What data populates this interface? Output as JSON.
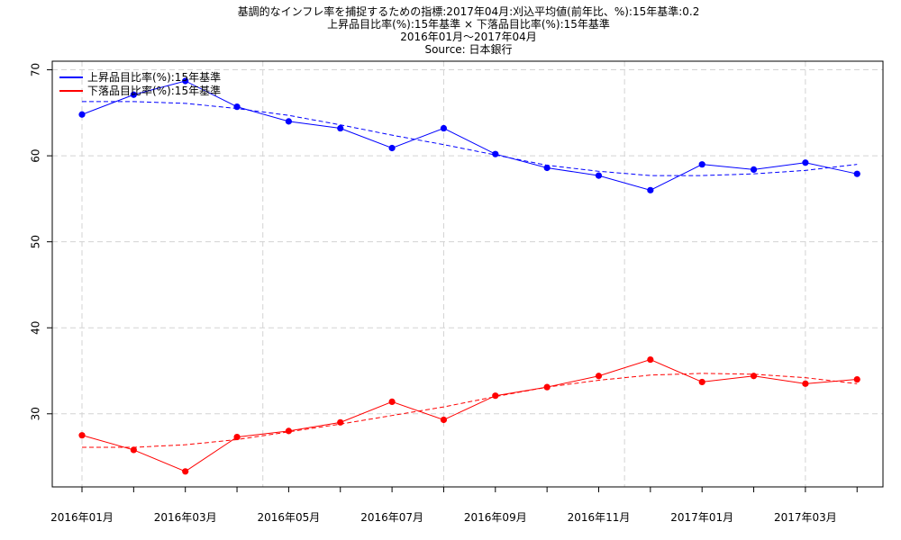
{
  "chart_data": {
    "type": "line",
    "title": "基調的なインフレ率を捕捉するための指標:2017年04月:刈込平均値(前年比、%):15年基準:0.2",
    "subtitle": "上昇品目比率(%):15年基準 × 下落品目比率(%):15年基準",
    "period": "2016年01月～2017年04月",
    "source": "Source: 日本銀行",
    "xlabel": "",
    "ylabel": "",
    "ylim": [
      21.5,
      71
    ],
    "y_ticks": [
      30,
      40,
      50,
      60,
      70
    ],
    "grid": true,
    "legend_position": "top-left",
    "x": [
      "2016年01月",
      "2016年02月",
      "2016年03月",
      "2016年04月",
      "2016年05月",
      "2016年06月",
      "2016年07月",
      "2016年08月",
      "2016年09月",
      "2016年10月",
      "2016年11月",
      "2016年12月",
      "2017年01月",
      "2017年02月",
      "2017年03月",
      "2017年04月"
    ],
    "x_tick_labels": [
      "2016年01月",
      "2016年03月",
      "2016年05月",
      "2016年07月",
      "2016年09月",
      "2016年11月",
      "2017年01月",
      "2017年03月"
    ],
    "series": [
      {
        "name": "上昇品目比率(%):15年基準",
        "color": "#0000ff",
        "values": [
          64.8,
          67.1,
          68.7,
          65.7,
          64.0,
          63.2,
          60.9,
          63.2,
          60.2,
          58.6,
          57.7,
          56.0,
          59.0,
          58.4,
          59.2,
          57.9
        ],
        "trend": [
          66.3,
          66.3,
          66.1,
          65.5,
          64.7,
          63.6,
          62.4,
          61.3,
          60.1,
          58.9,
          58.2,
          57.7,
          57.7,
          57.9,
          58.3,
          59.0
        ]
      },
      {
        "name": "下落品目比率(%):15年基準",
        "color": "#ff0000",
        "values": [
          27.5,
          25.8,
          23.3,
          27.3,
          28.0,
          29.0,
          31.4,
          29.3,
          32.1,
          33.1,
          34.4,
          36.3,
          33.7,
          34.4,
          33.5,
          34.0
        ],
        "trend": [
          26.1,
          26.1,
          26.4,
          27.0,
          27.9,
          28.8,
          29.8,
          30.8,
          32.0,
          33.1,
          33.9,
          34.5,
          34.7,
          34.6,
          34.2,
          33.5
        ]
      }
    ]
  }
}
